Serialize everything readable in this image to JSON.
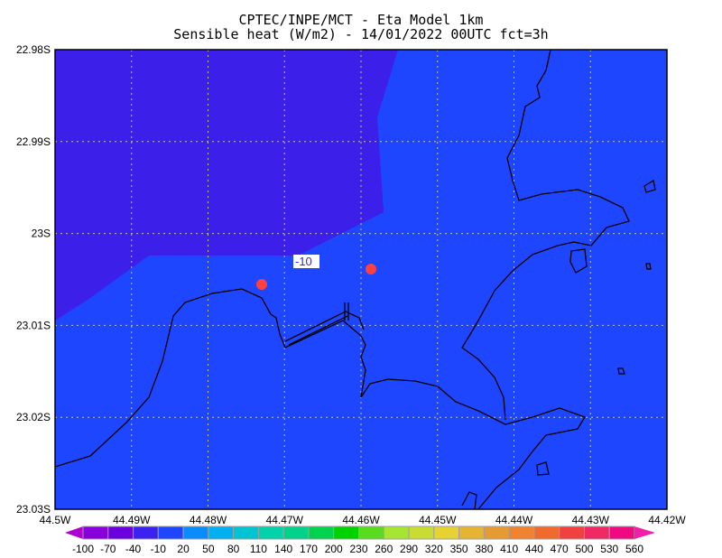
{
  "title_line1": "CPTEC/INPE/MCT -  Eta Model 1km",
  "title_line2": "Sensible heat (W/m2) - 14/01/2022 00UTC fct=3h",
  "map": {
    "lon_labels": [
      "44.5W",
      "44.49W",
      "44.48W",
      "44.47W",
      "44.46W",
      "44.45W",
      "44.44W",
      "44.43W",
      "44.42W"
    ],
    "lat_labels": [
      "22.98S",
      "22.99S",
      "23S",
      "23.01S",
      "23.02S",
      "23.03S"
    ],
    "contour_label": "-10",
    "background_color": "#1e46ff",
    "low_region_color": "#3c1fe8",
    "marker_color": "#ff4040"
  },
  "colorbar": {
    "labels": [
      "-100",
      "-70",
      "-40",
      "-10",
      "20",
      "50",
      "80",
      "110",
      "140",
      "170",
      "200",
      "230",
      "260",
      "290",
      "320",
      "350",
      "380",
      "410",
      "440",
      "470",
      "500",
      "530",
      "560"
    ],
    "colors": [
      "#b000d0",
      "#8a00dc",
      "#6a00dc",
      "#3c22f0",
      "#1e46ff",
      "#0a8cff",
      "#00b0f0",
      "#00c4d2",
      "#00d2aa",
      "#00d28c",
      "#00d250",
      "#00d200",
      "#5adc1e",
      "#a6e632",
      "#c8dc32",
      "#e6d232",
      "#e6b432",
      "#e69b32",
      "#f08232",
      "#f0692d",
      "#f04040",
      "#f02864",
      "#f00a82",
      "#f01eaa"
    ]
  }
}
